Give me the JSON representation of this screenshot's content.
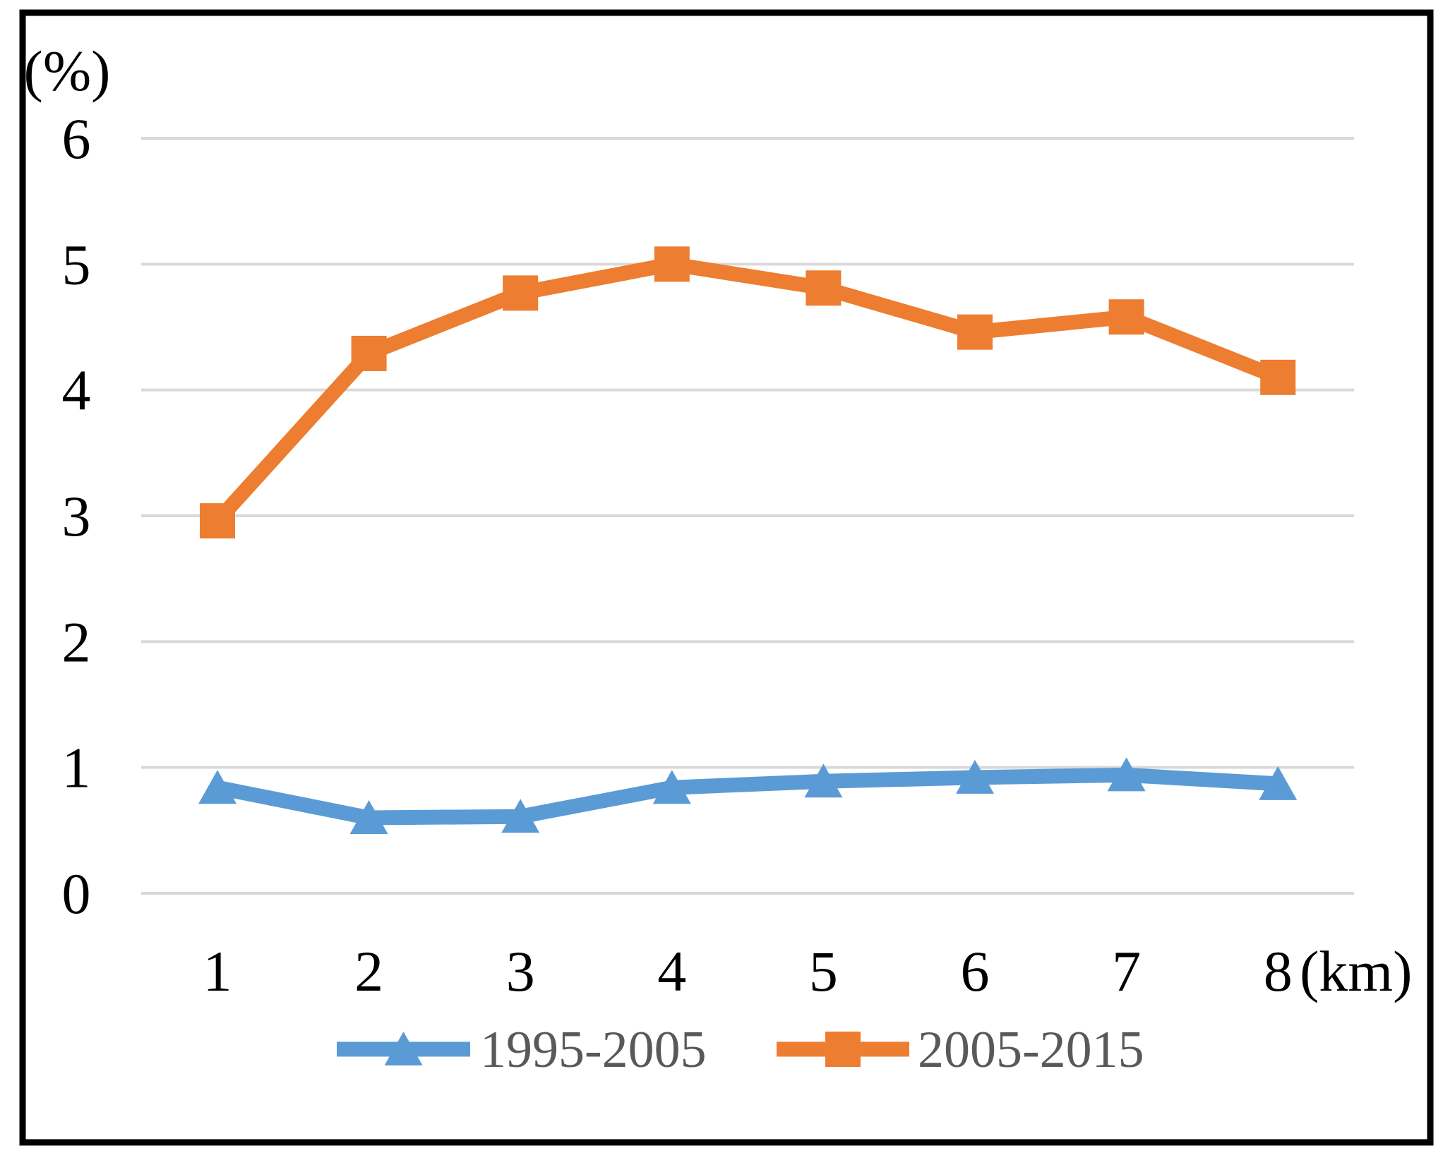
{
  "chart_data": {
    "type": "line",
    "ylabel_unit": "(%)",
    "xlabel_unit": "(km)",
    "categories": [
      "1",
      "2",
      "3",
      "4",
      "5",
      "6",
      "7",
      "8"
    ],
    "y_ticks": [
      0,
      1,
      2,
      3,
      4,
      5,
      6
    ],
    "ylim": [
      0,
      6
    ],
    "grid": true,
    "gridline_color": "#D9D9D9",
    "axis_text_color": "#000000",
    "legend_text_color": "#595959",
    "frame_color": "#000000",
    "legend_position": "bottom",
    "series": [
      {
        "name": "1995-2005",
        "color": "#5B9BD5",
        "marker": "triangle",
        "values": [
          0.84,
          0.6,
          0.61,
          0.84,
          0.89,
          0.92,
          0.94,
          0.87
        ]
      },
      {
        "name": "2005-2015",
        "color": "#ED7D31",
        "marker": "square",
        "values": [
          2.96,
          4.29,
          4.77,
          5.0,
          4.81,
          4.46,
          4.58,
          4.1
        ]
      }
    ]
  }
}
